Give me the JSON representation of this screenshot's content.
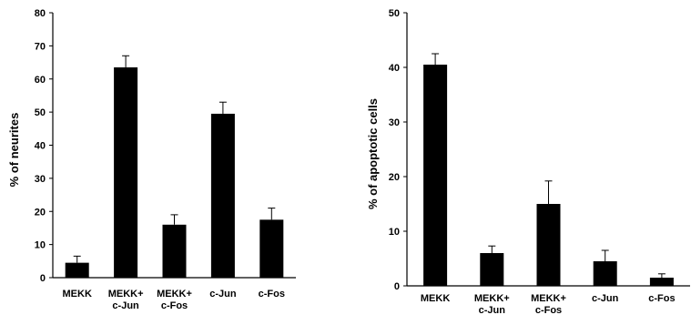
{
  "chart_data": [
    {
      "type": "bar",
      "categories": [
        [
          "MEKK"
        ],
        [
          "MEKK+",
          "c-Jun"
        ],
        [
          "MEKK+",
          "c-Fos"
        ],
        [
          "c-Jun"
        ],
        [
          "c-Fos"
        ]
      ],
      "values": [
        4.5,
        63.5,
        16,
        49.5,
        17.5
      ],
      "errors": [
        2,
        3.5,
        3,
        3.5,
        3.5
      ],
      "ylabel": "% of neurites",
      "ylim": [
        0,
        80
      ],
      "yticks": [
        0,
        10,
        20,
        30,
        40,
        50,
        60,
        70,
        80
      ],
      "grid": false,
      "bar_color": "#000000"
    },
    {
      "type": "bar",
      "categories": [
        [
          "MEKK"
        ],
        [
          "MEKK+",
          "c-Jun"
        ],
        [
          "MEKK+",
          "c-Fos"
        ],
        [
          "c-Jun"
        ],
        [
          "c-Fos"
        ]
      ],
      "values": [
        40.5,
        6,
        15,
        4.5,
        1.5
      ],
      "errors": [
        2,
        1.3,
        4.2,
        2,
        0.7
      ],
      "ylabel": "% of apoptotic cells",
      "ylim": [
        0,
        50
      ],
      "yticks": [
        0,
        10,
        20,
        30,
        40,
        50
      ],
      "grid": false,
      "bar_color": "#000000"
    }
  ]
}
